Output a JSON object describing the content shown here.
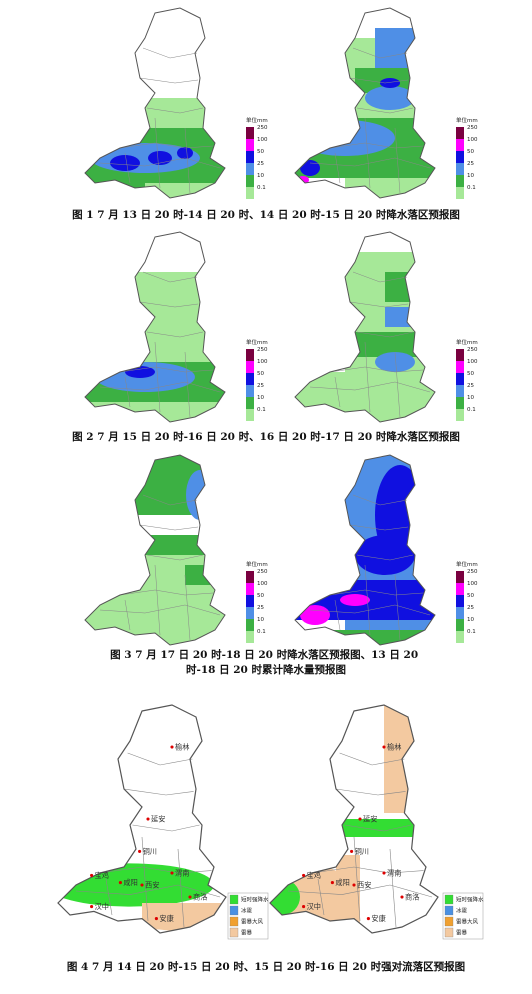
{
  "figures": [
    {
      "caption": "图 1  7 月 13 日 20 时-14 日 20 时、14 日 20 时-15 日 20 时降水落区预报图"
    },
    {
      "caption": "图 2  7 月 15 日 20 时-16 日 20 时、16 日 20 时-17 日 20 时降水落区预报图"
    },
    {
      "caption": "图 3  7 月 17 日 20 时-18 日 20 时降水落区预报图、13 日 20 时-18 日 20 时累计降水量预报图"
    },
    {
      "caption": "图 4  7 月 14 日 20 时-15 日 20 时、15 日 20 时-16 日 20 时强对流落区预报图"
    }
  ],
  "rain_legend": {
    "title": "单位mm",
    "items": [
      {
        "label": "250",
        "color": "#7a0040"
      },
      {
        "label": "100",
        "color": "#ff00ff"
      },
      {
        "label": "50",
        "color": "#1010e0"
      },
      {
        "label": "25",
        "color": "#4f8fe6"
      },
      {
        "label": "10",
        "color": "#3cb043"
      },
      {
        "label": "0.1",
        "color": "#a6e898"
      }
    ]
  },
  "convection_legend": {
    "items": [
      {
        "label": "短时强降水",
        "color": "#33dd33"
      },
      {
        "label": "冰雹",
        "color": "#4a90e2"
      },
      {
        "label": "雷暴大风",
        "color": "#f0a030"
      },
      {
        "label": "雷暴",
        "color": "#f3c9a0"
      }
    ]
  },
  "cities": [
    "榆林",
    "延安",
    "铜川",
    "宝鸡",
    "咸阳",
    "西安",
    "渭南",
    "汉中",
    "商洛",
    "安康"
  ]
}
